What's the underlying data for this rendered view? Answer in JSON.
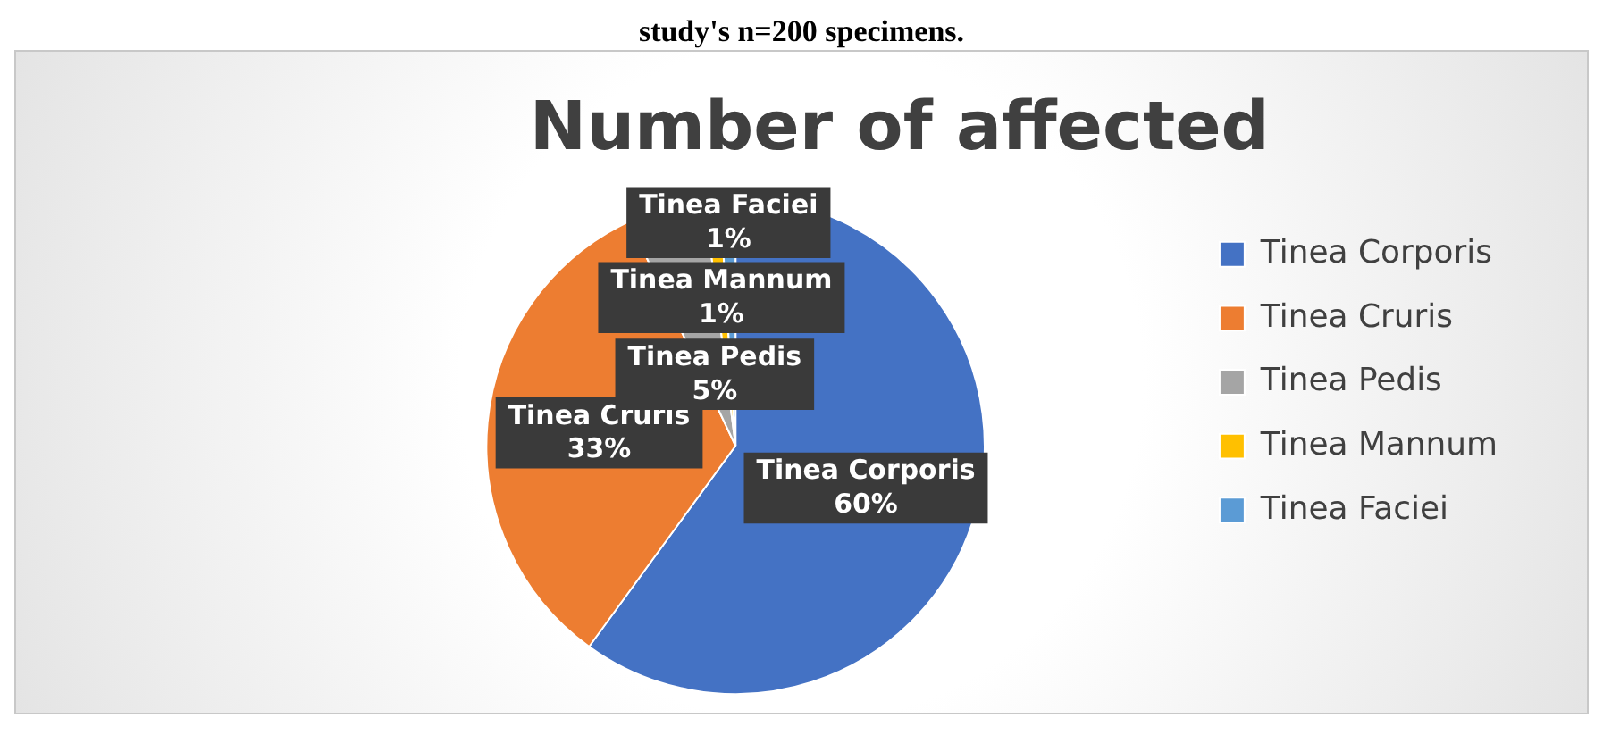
{
  "chart_data": {
    "type": "pie",
    "title": "Number of affected",
    "annotations": [
      "study's n=200 specimens."
    ],
    "categories": [
      "Tinea Corporis",
      "Tinea Cruris",
      "Tinea Pedis",
      "Tinea Mannum",
      "Tinea Faciei"
    ],
    "values": [
      60,
      33,
      5,
      1,
      1
    ],
    "value_labels": [
      "60%",
      "33%",
      "5%",
      "1%",
      "1%"
    ],
    "colors": [
      "#4472c4",
      "#ed7d31",
      "#a5a5a5",
      "#ffc000",
      "#5b9bd5"
    ],
    "legend": "right"
  }
}
